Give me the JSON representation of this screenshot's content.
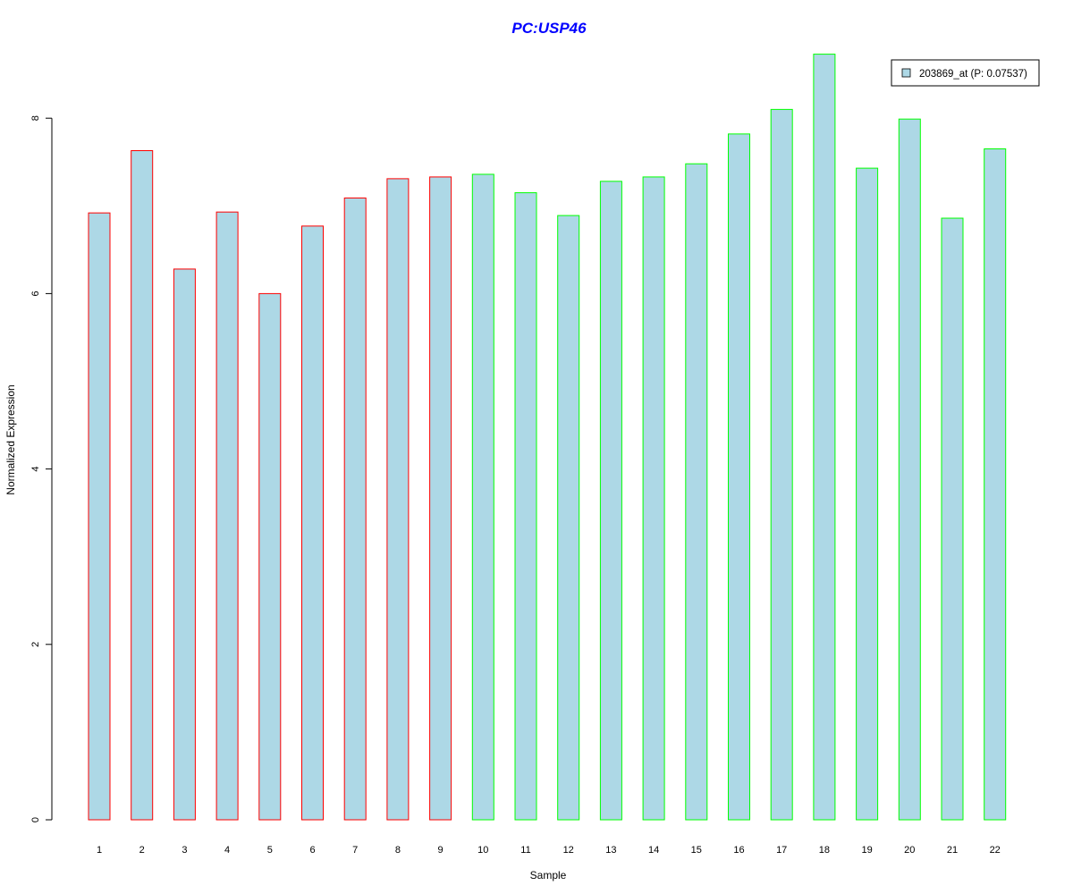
{
  "chart_data": {
    "type": "bar",
    "title": "PC:USP46",
    "xlabel": "Sample",
    "ylabel": "Normalized Expression",
    "ylim": [
      0,
      8.8
    ],
    "yticks": [
      0,
      2,
      4,
      6,
      8
    ],
    "grid": false,
    "legend_position": "top-right",
    "categories": [
      "1",
      "2",
      "3",
      "4",
      "5",
      "6",
      "7",
      "8",
      "9",
      "10",
      "11",
      "12",
      "13",
      "14",
      "15",
      "16",
      "17",
      "18",
      "19",
      "20",
      "21",
      "22"
    ],
    "series": [
      {
        "name": "203869_at (P: 0.07537)",
        "values": [
          6.92,
          7.63,
          6.28,
          6.93,
          6.0,
          6.77,
          7.09,
          7.31,
          7.33,
          7.36,
          7.15,
          6.89,
          7.28,
          7.33,
          7.48,
          7.82,
          8.1,
          8.73,
          7.43,
          7.99,
          6.86,
          7.65
        ]
      }
    ],
    "groups": [
      {
        "samples": "1-9",
        "border_color": "#ff0000"
      },
      {
        "samples": "10-22",
        "border_color": "#00ff00"
      }
    ],
    "colors": {
      "bar_fill": "#add8e6",
      "title": "#0000ff",
      "group_a": "#ff0000",
      "group_b": "#00ff00"
    }
  }
}
